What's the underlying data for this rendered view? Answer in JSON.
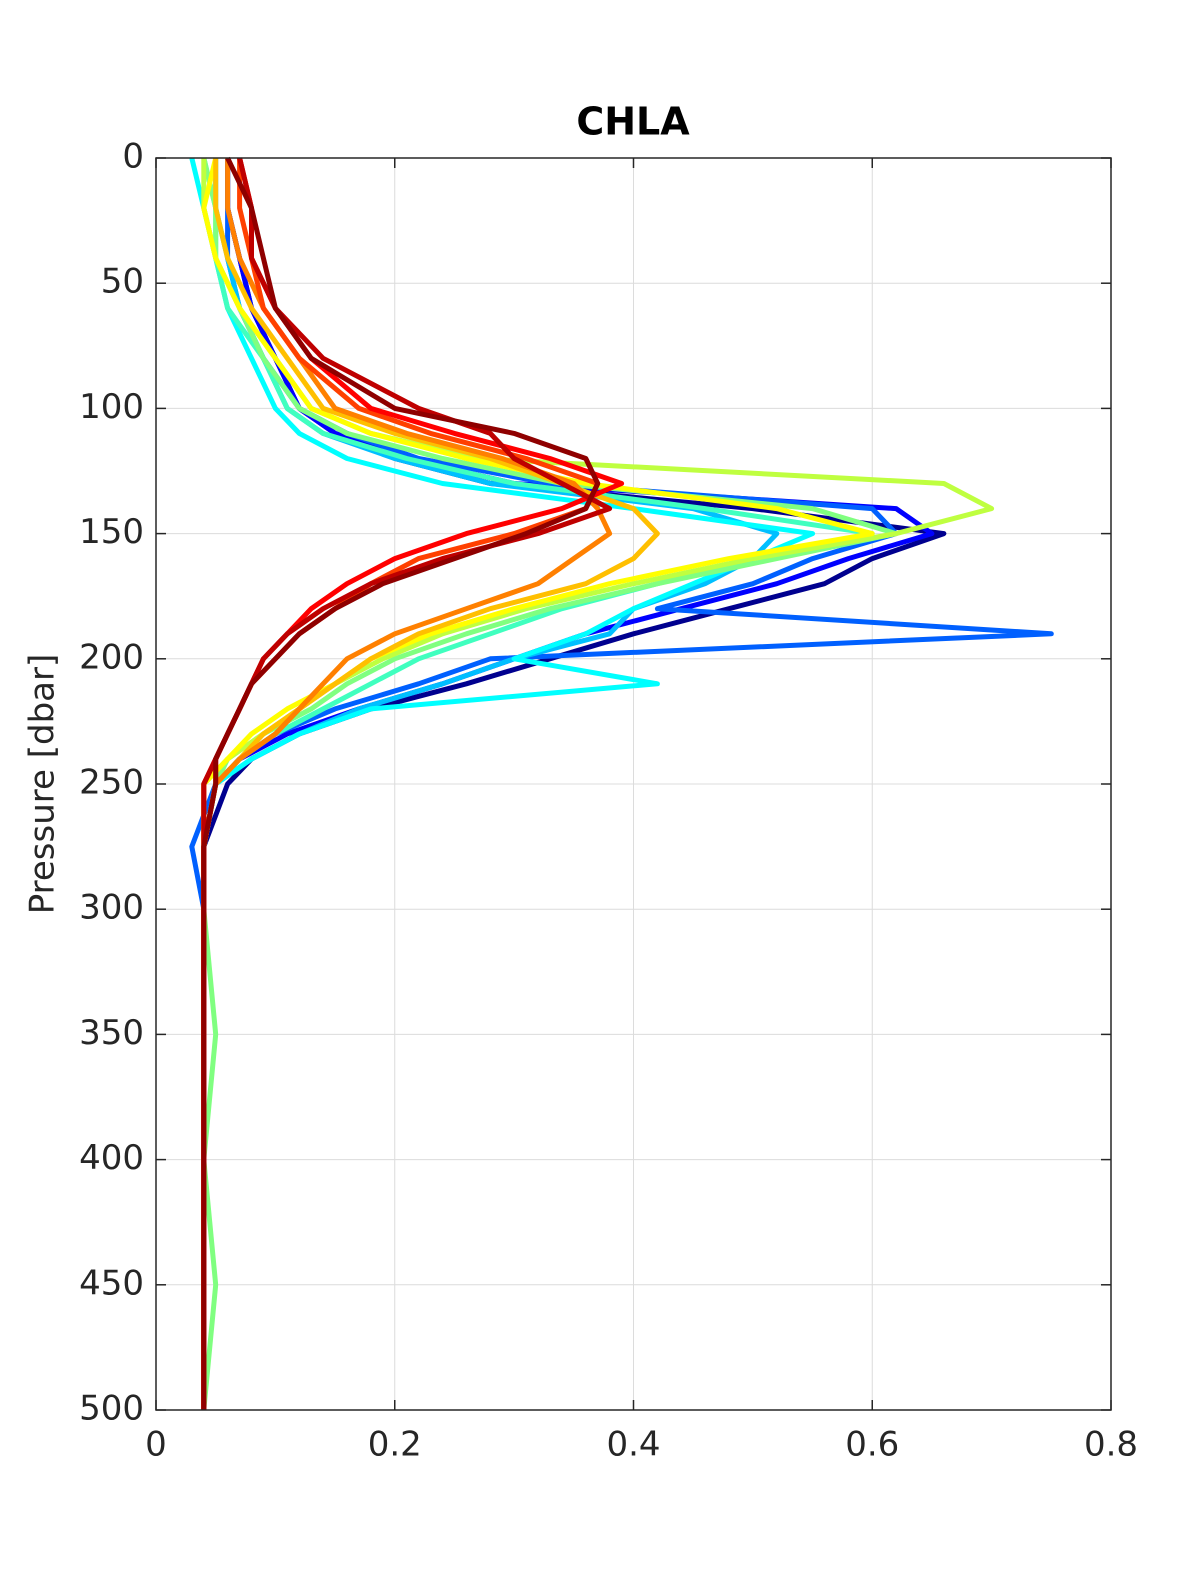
{
  "chart_data": {
    "type": "line",
    "title": "CHLA",
    "ylabel": "Pressure [dbar]",
    "y": [
      0,
      20,
      40,
      60,
      80,
      100,
      110,
      120,
      130,
      140,
      150,
      160,
      170,
      180,
      190,
      200,
      210,
      220,
      230,
      240,
      250,
      275,
      300,
      350,
      400,
      450,
      500
    ],
    "xlim": [
      0,
      0.8
    ],
    "xticks": [
      0,
      0.2,
      0.4,
      0.6,
      0.8
    ],
    "ylim": [
      0,
      500
    ],
    "yticks": [
      0,
      50,
      100,
      150,
      200,
      250,
      300,
      350,
      400,
      450,
      500
    ],
    "y_reversed": true,
    "grid": true,
    "series": [
      {
        "color": "#00008f",
        "values": [
          0.06,
          0.06,
          0.07,
          0.08,
          0.1,
          0.12,
          0.15,
          0.2,
          0.28,
          0.5,
          0.66,
          0.6,
          0.56,
          0.48,
          0.4,
          0.33,
          0.26,
          0.18,
          0.12,
          0.08,
          0.06,
          0.04,
          0.04,
          0.04,
          0.04,
          0.04,
          0.04
        ]
      },
      {
        "color": "#0000ff",
        "values": [
          0.06,
          0.06,
          0.07,
          0.08,
          0.1,
          0.12,
          0.15,
          0.21,
          0.3,
          0.62,
          0.65,
          0.58,
          0.52,
          0.44,
          0.36,
          0.3,
          0.24,
          0.17,
          0.11,
          0.07,
          0.05,
          0.04,
          0.04,
          0.04,
          0.04,
          0.04,
          0.04
        ]
      },
      {
        "color": "#0060ff",
        "values": [
          0.06,
          0.06,
          0.06,
          0.07,
          0.09,
          0.12,
          0.16,
          0.22,
          0.33,
          0.6,
          0.62,
          0.55,
          0.5,
          0.42,
          0.75,
          0.28,
          0.22,
          0.15,
          0.1,
          0.07,
          0.05,
          0.03,
          0.04,
          0.04,
          0.04,
          0.04,
          0.04
        ]
      },
      {
        "color": "#00bfff",
        "values": [
          0.05,
          0.05,
          0.06,
          0.07,
          0.09,
          0.11,
          0.14,
          0.2,
          0.28,
          0.45,
          0.52,
          0.5,
          0.46,
          0.4,
          0.38,
          0.3,
          0.24,
          0.17,
          0.12,
          0.08,
          0.05,
          0.04,
          0.04,
          0.04,
          0.04,
          0.04,
          0.04
        ]
      },
      {
        "color": "#00ffff",
        "values": [
          0.03,
          0.04,
          0.05,
          0.06,
          0.08,
          0.1,
          0.12,
          0.16,
          0.24,
          0.4,
          0.55,
          0.5,
          0.45,
          0.4,
          0.36,
          0.3,
          0.42,
          0.18,
          0.12,
          0.08,
          0.05,
          0.04,
          0.04,
          0.04,
          0.04,
          0.04,
          0.04
        ]
      },
      {
        "color": "#40ffbf",
        "values": [
          0.04,
          0.05,
          0.05,
          0.06,
          0.09,
          0.11,
          0.14,
          0.21,
          0.3,
          0.46,
          0.6,
          0.5,
          0.42,
          0.34,
          0.28,
          0.22,
          0.18,
          0.14,
          0.1,
          0.07,
          0.05,
          0.04,
          0.04,
          0.04,
          0.04,
          0.04,
          0.04
        ]
      },
      {
        "color": "#80ff80",
        "values": [
          0.04,
          0.05,
          0.05,
          0.07,
          0.09,
          0.12,
          0.16,
          0.24,
          0.34,
          0.55,
          0.62,
          0.52,
          0.42,
          0.33,
          0.26,
          0.2,
          0.16,
          0.13,
          0.09,
          0.06,
          0.05,
          0.04,
          0.04,
          0.05,
          0.04,
          0.05,
          0.04
        ]
      },
      {
        "color": "#bfff40",
        "values": [
          0.04,
          0.04,
          0.05,
          0.07,
          0.1,
          0.13,
          0.18,
          0.27,
          0.66,
          0.7,
          0.62,
          0.5,
          0.4,
          0.31,
          0.24,
          0.19,
          0.15,
          0.12,
          0.09,
          0.06,
          0.04,
          0.04,
          0.04,
          0.04,
          0.04,
          0.04,
          0.04
        ]
      },
      {
        "color": "#ffff00",
        "values": [
          0.05,
          0.04,
          0.05,
          0.07,
          0.1,
          0.13,
          0.18,
          0.26,
          0.36,
          0.52,
          0.6,
          0.48,
          0.38,
          0.3,
          0.23,
          0.18,
          0.15,
          0.11,
          0.08,
          0.06,
          0.04,
          0.04,
          0.04,
          0.04,
          0.04,
          0.04,
          0.04
        ]
      },
      {
        "color": "#ffbf00",
        "values": [
          0.05,
          0.05,
          0.06,
          0.08,
          0.11,
          0.14,
          0.2,
          0.28,
          0.34,
          0.4,
          0.42,
          0.4,
          0.36,
          0.28,
          0.22,
          0.18,
          0.15,
          0.12,
          0.09,
          0.07,
          0.05,
          0.04,
          0.04,
          0.04,
          0.04,
          0.04,
          0.04
        ]
      },
      {
        "color": "#ff8000",
        "values": [
          0.06,
          0.06,
          0.07,
          0.09,
          0.12,
          0.15,
          0.21,
          0.29,
          0.35,
          0.37,
          0.38,
          0.35,
          0.32,
          0.26,
          0.2,
          0.16,
          0.14,
          0.12,
          0.1,
          0.07,
          0.05,
          0.04,
          0.04,
          0.04,
          0.04,
          0.04,
          0.04
        ]
      },
      {
        "color": "#ff4000",
        "values": [
          0.07,
          0.07,
          0.08,
          0.09,
          0.12,
          0.17,
          0.23,
          0.31,
          0.37,
          0.36,
          0.3,
          0.22,
          0.18,
          0.15,
          0.12,
          0.1,
          0.08,
          0.07,
          0.06,
          0.05,
          0.05,
          0.04,
          0.04,
          0.04,
          0.04,
          0.04,
          0.04
        ]
      },
      {
        "color": "#ff0000",
        "values": [
          0.07,
          0.08,
          0.08,
          0.1,
          0.13,
          0.18,
          0.25,
          0.33,
          0.39,
          0.34,
          0.26,
          0.2,
          0.16,
          0.13,
          0.11,
          0.09,
          0.08,
          0.07,
          0.06,
          0.05,
          0.04,
          0.04,
          0.04,
          0.04,
          0.04,
          0.04,
          0.04
        ]
      },
      {
        "color": "#bf0000",
        "values": [
          0.07,
          0.08,
          0.08,
          0.1,
          0.14,
          0.22,
          0.28,
          0.3,
          0.34,
          0.38,
          0.32,
          0.24,
          0.18,
          0.14,
          0.11,
          0.09,
          0.08,
          0.07,
          0.06,
          0.05,
          0.04,
          0.04,
          0.04,
          0.04,
          0.04,
          0.04,
          0.04
        ]
      },
      {
        "color": "#8f0000",
        "values": [
          0.06,
          0.08,
          0.09,
          0.1,
          0.13,
          0.2,
          0.3,
          0.36,
          0.37,
          0.36,
          0.31,
          0.25,
          0.19,
          0.15,
          0.12,
          0.1,
          0.08,
          0.07,
          0.06,
          0.05,
          0.05,
          0.04,
          0.04,
          0.04,
          0.04,
          0.04,
          0.04
        ]
      }
    ]
  }
}
